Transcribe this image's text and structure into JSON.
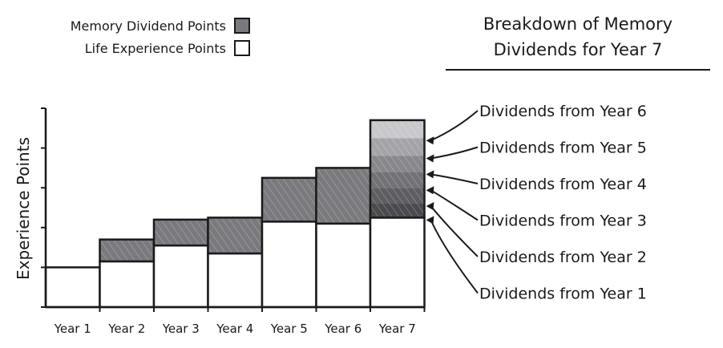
{
  "legend": {
    "memory_label": "Memory Dividend Points",
    "life_label": "Life Experience Points",
    "memory_color": "#7a7a7e",
    "life_color": "#ffffff"
  },
  "panel": {
    "title_line1": "Breakdown of Memory",
    "title_line2": "Dividends for Year 7"
  },
  "chart_data": {
    "type": "bar",
    "stacked": true,
    "categories": [
      "Year 1",
      "Year 2",
      "Year 3",
      "Year 4",
      "Year 5",
      "Year 6",
      "Year 7"
    ],
    "ylabel": "Experience Points",
    "xlabel": "",
    "y_tick_labels_shown": false,
    "ylim": [
      0,
      5
    ],
    "series": [
      {
        "name": "Life Experience Points",
        "values": [
          1.0,
          1.15,
          1.55,
          1.35,
          2.15,
          2.1,
          2.25
        ]
      },
      {
        "name": "Memory Dividend Points",
        "values": [
          0,
          0.55,
          0.65,
          0.9,
          1.1,
          1.4,
          2.45
        ]
      }
    ],
    "year7_breakdown": {
      "labels": [
        "Dividends from Year 6",
        "Dividends from Year 5",
        "Dividends from Year 4",
        "Dividends from Year 3",
        "Dividends from Year 2",
        "Dividends from Year 1"
      ],
      "segments_bottom_to_top": [
        0.35,
        0.4,
        0.4,
        0.4,
        0.45,
        0.45
      ],
      "shades_bottom_to_top": [
        "#4a4a4e",
        "#5e5e62",
        "#727276",
        "#88888c",
        "#a4a4a8",
        "#c8c8cc"
      ]
    }
  }
}
